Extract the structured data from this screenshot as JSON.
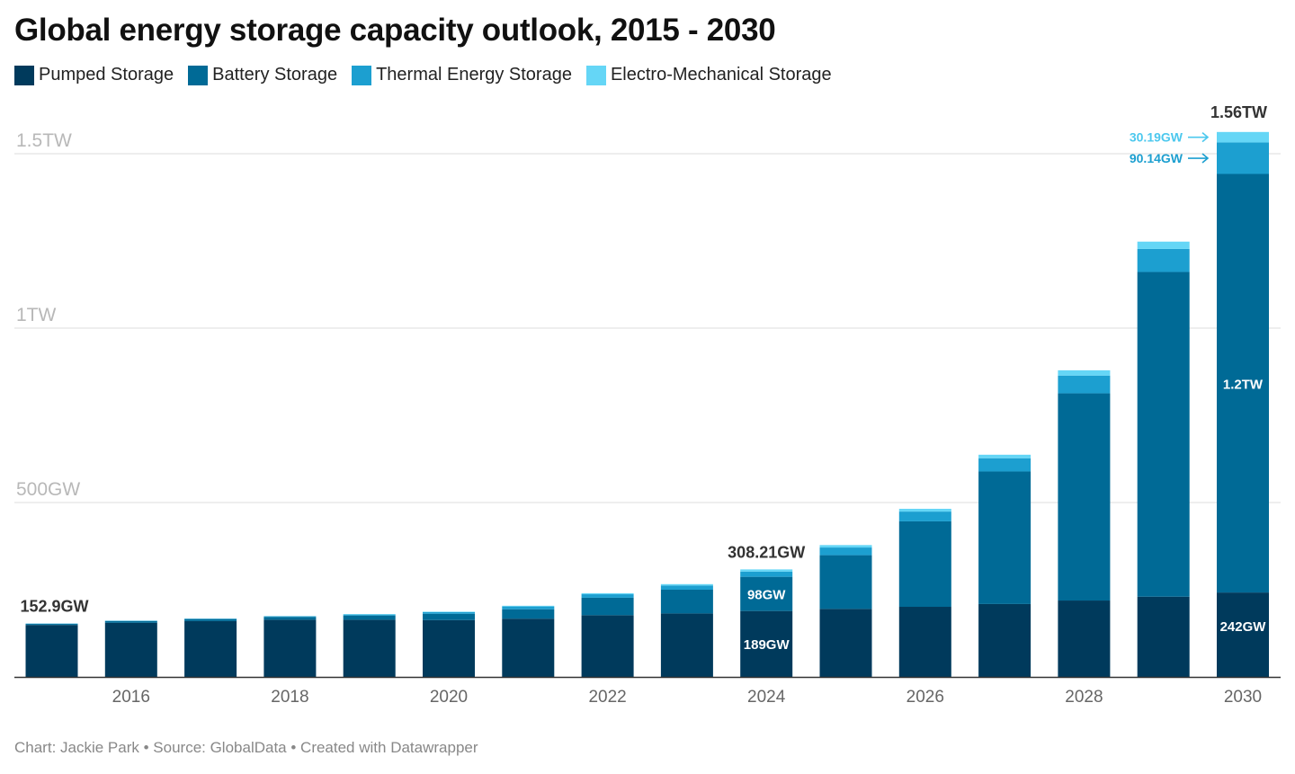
{
  "title": "Global energy storage capacity outlook, 2015 - 2030",
  "footer": "Chart: Jackie Park • Source: GlobalData • Created with Datawrapper",
  "colors": {
    "pumped": "#003a5c",
    "battery": "#006a96",
    "thermal": "#1c9fd0",
    "electro": "#65d6f6",
    "grid": "#dcdcdc",
    "axis_label": "#b8b8b8",
    "tick_label": "#666666",
    "annotation_thermal": "#1c9fd0",
    "annotation_electro": "#4cc8ee"
  },
  "chart_data": {
    "type": "bar",
    "stacked": true,
    "title": "Global energy storage capacity outlook, 2015 - 2030",
    "unit": "GW",
    "categories": [
      "2015",
      "2016",
      "2017",
      "2018",
      "2019",
      "2020",
      "2021",
      "2022",
      "2023",
      "2024",
      "2025",
      "2026",
      "2027",
      "2028",
      "2029",
      "2030"
    ],
    "x_tick_labels": [
      "2016",
      "2018",
      "2020",
      "2022",
      "2024",
      "2026",
      "2028",
      "2030"
    ],
    "y_gridlines": [
      {
        "value": 500,
        "label": "500GW"
      },
      {
        "value": 1000,
        "label": "1TW"
      },
      {
        "value": 1500,
        "label": "1.5TW"
      }
    ],
    "ylim": [
      0,
      1560
    ],
    "grid": true,
    "legend_position": "top-left",
    "series": [
      {
        "name": "Pumped Storage",
        "color_key": "pumped",
        "values": [
          149,
          155,
          160,
          164,
          164,
          163,
          167,
          177,
          182,
          189,
          195,
          201,
          209,
          219,
          230,
          242
        ]
      },
      {
        "name": "Battery Storage",
        "color_key": "battery",
        "values": [
          2.9,
          5,
          6,
          8,
          12,
          18,
          27,
          50,
          68,
          98,
          154,
          245,
          380,
          594,
          931,
          1200
        ]
      },
      {
        "name": "Thermal Energy Storage",
        "color_key": "thermal",
        "values": [
          1,
          1,
          1,
          2,
          3,
          5,
          8,
          10,
          12,
          15,
          22,
          28,
          38,
          51,
          66,
          90.14
        ]
      },
      {
        "name": "Electro-Mechanical Storage",
        "color_key": "electro",
        "values": [
          0,
          0,
          0,
          0,
          1,
          1,
          2,
          3,
          4,
          6.21,
          7,
          8,
          10,
          15,
          21,
          30.19
        ]
      }
    ],
    "annotations": {
      "total_labels": [
        {
          "category": "2015",
          "text": "152.9GW"
        },
        {
          "category": "2024",
          "text": "308.21GW"
        },
        {
          "category": "2030",
          "text": "1.56TW"
        }
      ],
      "segment_labels": [
        {
          "category": "2024",
          "series": "Pumped Storage",
          "text": "189GW"
        },
        {
          "category": "2024",
          "series": "Battery Storage",
          "text": "98GW"
        },
        {
          "category": "2030",
          "series": "Pumped Storage",
          "text": "242GW"
        },
        {
          "category": "2030",
          "series": "Battery Storage",
          "text": "1.2TW"
        }
      ],
      "arrow_labels": [
        {
          "category": "2030",
          "series": "Electro-Mechanical Storage",
          "text": "30.19GW",
          "color_key": "annotation_electro"
        },
        {
          "category": "2030",
          "series": "Thermal Energy Storage",
          "text": "90.14GW",
          "color_key": "annotation_thermal"
        }
      ]
    }
  }
}
